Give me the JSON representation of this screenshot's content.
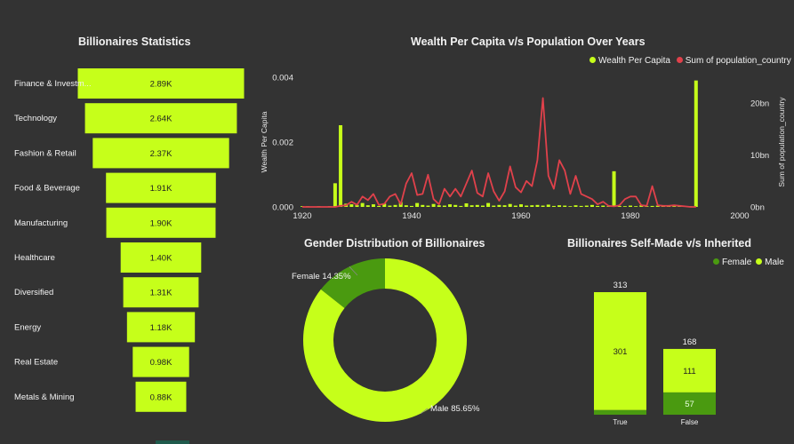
{
  "funnel": {
    "title": "Billionaires Statistics",
    "chart_data": {
      "type": "bar",
      "categories": [
        "Finance & Investments",
        "Technology",
        "Fashion & Retail",
        "Food & Beverage",
        "Manufacturing",
        "Healthcare",
        "Diversified",
        "Energy",
        "Real Estate",
        "Metals & Mining"
      ],
      "display_categories": [
        "Finance & Investm...",
        "Technology",
        "Fashion & Retail",
        "Food & Beverage",
        "Manufacturing",
        "Healthcare",
        "Diversified",
        "Energy",
        "Real Estate",
        "Metals & Mining"
      ],
      "values": [
        2890,
        2640,
        2370,
        1910,
        1900,
        1400,
        1310,
        1180,
        980,
        880
      ],
      "labels": [
        "2.89K",
        "2.64K",
        "2.37K",
        "1.91K",
        "1.90K",
        "1.40K",
        "1.31K",
        "1.18K",
        "0.98K",
        "0.88K"
      ],
      "color": "#c6ff1a"
    }
  },
  "combo": {
    "title": "Wealth Per Capita v/s Population Over Years",
    "chart_data": {
      "type": "bar",
      "xlabel": "",
      "ylabel": "Wealth Per Capita",
      "y2label": "Sum of population_country",
      "xlim": [
        1920,
        2000
      ],
      "ylim": [
        0,
        0.004
      ],
      "y2lim": [
        0,
        25
      ],
      "xticks": [
        "1920",
        "1940",
        "1960",
        "1980",
        "2000"
      ],
      "yticks": [
        "0.000",
        "0.002",
        "0.004"
      ],
      "y2ticks": [
        "0bn",
        "10bn",
        "20bn"
      ],
      "legend": [
        "Wealth Per Capita",
        "Sum of population_country"
      ],
      "series": [
        {
          "name": "Wealth Per Capita",
          "color": "#c6ff1a",
          "x": [
            1920,
            1921,
            1923,
            1925,
            1926,
            1927,
            1928,
            1929,
            1930,
            1931,
            1932,
            1933,
            1934,
            1935,
            1936,
            1937,
            1938,
            1939,
            1940,
            1941,
            1942,
            1943,
            1944,
            1945,
            1946,
            1947,
            1948,
            1949,
            1950,
            1951,
            1952,
            1953,
            1954,
            1955,
            1956,
            1957,
            1958,
            1959,
            1960,
            1961,
            1962,
            1963,
            1964,
            1965,
            1966,
            1967,
            1968,
            1969,
            1970,
            1971,
            1972,
            1973,
            1974,
            1975,
            1976,
            1977,
            1978,
            1979,
            1980,
            1981,
            1982,
            1983,
            1984,
            1985,
            1986,
            1987,
            1988,
            1989,
            1990,
            1991,
            1992
          ],
          "y": [
            0.0,
            0.0,
            0.0,
            0.0,
            0.00073,
            0.00252,
            0.0001,
            8e-05,
            6e-05,
            0.00012,
            5e-05,
            8e-05,
            3e-05,
            0.0001,
            4e-05,
            6e-05,
            0.00015,
            5e-05,
            3e-05,
            0.00012,
            6e-05,
            4e-05,
            9e-05,
            5e-05,
            4e-05,
            8e-05,
            6e-05,
            3e-05,
            0.00011,
            5e-05,
            6e-05,
            4e-05,
            0.00012,
            4e-05,
            6e-05,
            5e-05,
            9e-05,
            4e-05,
            8e-05,
            4e-05,
            5e-05,
            6e-05,
            4e-05,
            7e-05,
            3e-05,
            5e-05,
            4e-05,
            2e-05,
            5e-05,
            3e-05,
            4e-05,
            6e-05,
            3e-05,
            4e-05,
            2e-05,
            0.0011,
            3e-05,
            2e-05,
            4e-05,
            2e-05,
            5e-05,
            2e-05,
            3e-05,
            4e-05,
            2e-05,
            3e-05,
            1e-05,
            2e-05,
            1e-05,
            2e-05,
            0.0039
          ]
        },
        {
          "name": "Sum of population_country",
          "color": "#e0414b",
          "x": [
            1920,
            1921,
            1923,
            1925,
            1926,
            1927,
            1928,
            1929,
            1930,
            1931,
            1932,
            1933,
            1934,
            1935,
            1936,
            1937,
            1938,
            1939,
            1940,
            1941,
            1942,
            1943,
            1944,
            1945,
            1946,
            1947,
            1948,
            1949,
            1950,
            1951,
            1952,
            1953,
            1954,
            1955,
            1956,
            1957,
            1958,
            1959,
            1960,
            1961,
            1962,
            1963,
            1964,
            1965,
            1966,
            1967,
            1968,
            1969,
            1970,
            1971,
            1972,
            1973,
            1974,
            1975,
            1976,
            1977,
            1978,
            1979,
            1980,
            1981,
            1982,
            1983,
            1984,
            1985,
            1986,
            1987,
            1988,
            1989,
            1990,
            1991,
            1992
          ],
          "y": [
            0.0,
            0.0,
            0.0,
            0.0,
            0.0,
            0.2,
            0.3,
            1.0,
            0.4,
            2.0,
            1.3,
            2.5,
            0.4,
            0.6,
            2.0,
            2.5,
            0.5,
            4.5,
            6.5,
            2.3,
            2.5,
            6.2,
            1.5,
            0.5,
            3.5,
            2.0,
            3.5,
            2.0,
            4.5,
            7.0,
            2.7,
            2.0,
            6.5,
            3.0,
            1.2,
            3.0,
            7.8,
            3.8,
            2.8,
            5.0,
            4.0,
            9.0,
            21.0,
            6.0,
            3.5,
            9.0,
            7.0,
            2.5,
            6.0,
            2.5,
            2.0,
            1.5,
            0.5,
            1.0,
            0.2,
            0.1,
            0.3,
            1.5,
            2.0,
            2.0,
            0.3,
            0.2,
            4.0,
            0.3,
            0.2,
            0.2,
            0.3,
            0.2,
            0.1,
            0.0,
            0.0
          ]
        }
      ]
    }
  },
  "donut": {
    "title": "Gender Distribution of Billionaires",
    "chart_data": {
      "type": "pie",
      "categories": [
        "Female",
        "Male"
      ],
      "values": [
        14.35,
        85.65
      ],
      "labels": [
        "Female 14.35%",
        "Male 85.65%"
      ],
      "colors": [
        "#4a9a10",
        "#c6ff1a"
      ]
    }
  },
  "stacked": {
    "title": "Billionaires Self-Made v/s Inherited",
    "chart_data": {
      "type": "bar",
      "categories": [
        "True",
        "False"
      ],
      "legend": [
        "Female",
        "Male"
      ],
      "totals": [
        313,
        168
      ],
      "series": [
        {
          "name": "Female",
          "color": "#4a9a10",
          "values": [
            12,
            57
          ],
          "labels": [
            "",
            "57"
          ]
        },
        {
          "name": "Male",
          "color": "#c6ff1a",
          "values": [
            301,
            111
          ],
          "labels": [
            "301",
            "111"
          ]
        }
      ]
    }
  }
}
